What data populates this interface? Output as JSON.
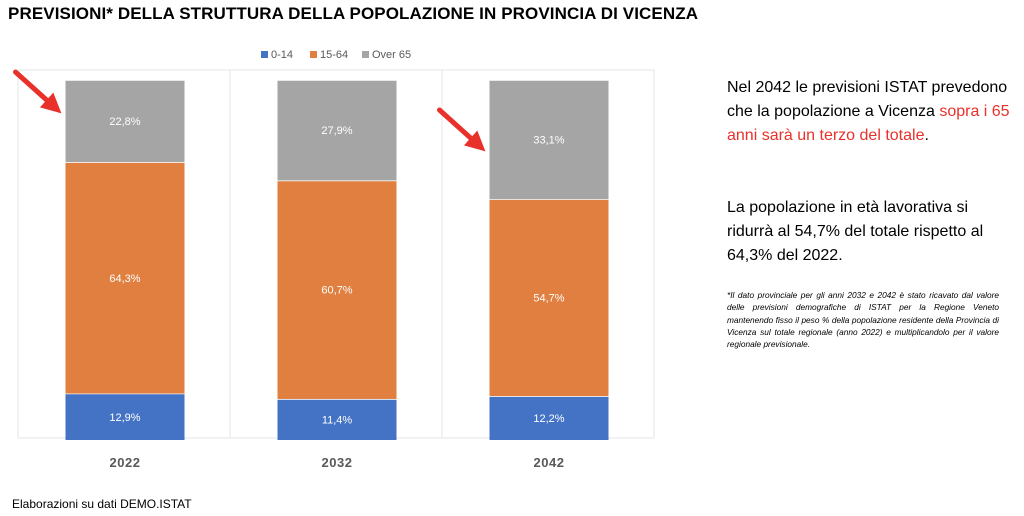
{
  "page": {
    "title": "PREVISIONI* DELLA STRUTTURA DELLA POPOLAZIONE IN PROVINCIA DI VICENZA",
    "source": "Elaborazioni su dati DEMO.ISTAT"
  },
  "notes": {
    "paragraph1": {
      "before": "Nel 2042 le previsioni ISTAT prevedono che la popolazione a Vicenza ",
      "highlight": "sopra i 65 anni sarà un terzo del totale",
      "after": "."
    },
    "paragraph2": "La popolazione in età lavorativa si ridurrà al 54,7% del totale rispetto al 64,3% del 2022.",
    "footnote": "*Il dato provinciale per gli anni 2032 e 2042 è stato ricavato dal valore delle previsioni demografiche di ISTAT per la Regione Veneto mantenendo fisso il peso % della popolazione residente della Provincia di Vicenza sul totale regionale (anno 2022) e multiplicandolo per il valore regionale previsionale.",
    "highlight_color": "#E8312A"
  },
  "chart_data": {
    "type": "bar",
    "stacked": true,
    "normalized": true,
    "categories": [
      "2022",
      "2032",
      "2042"
    ],
    "series": [
      {
        "name": "0-14",
        "color": "#4472C4",
        "values": [
          12.9,
          11.4,
          12.2
        ],
        "labels": [
          "12,9%",
          "11,4%",
          "12,2%"
        ]
      },
      {
        "name": "15-64",
        "color": "#E07F3F",
        "values": [
          64.3,
          60.7,
          54.7
        ],
        "labels": [
          "64,3%",
          "60,7%",
          "54,7%"
        ]
      },
      {
        "name": "Over 65",
        "color": "#A5A5A5",
        "values": [
          22.8,
          27.9,
          33.1
        ],
        "labels": [
          "22,8%",
          "27,9%",
          "33,1%"
        ]
      }
    ],
    "ylim": [
      0,
      100
    ],
    "legend": "top",
    "grid": false,
    "annotations": [
      {
        "type": "arrow",
        "color": "#E8312A",
        "target_category": "2022",
        "target_series": "Over 65"
      },
      {
        "type": "arrow",
        "color": "#E8312A",
        "target_category": "2042",
        "target_series": "Over 65"
      }
    ]
  }
}
